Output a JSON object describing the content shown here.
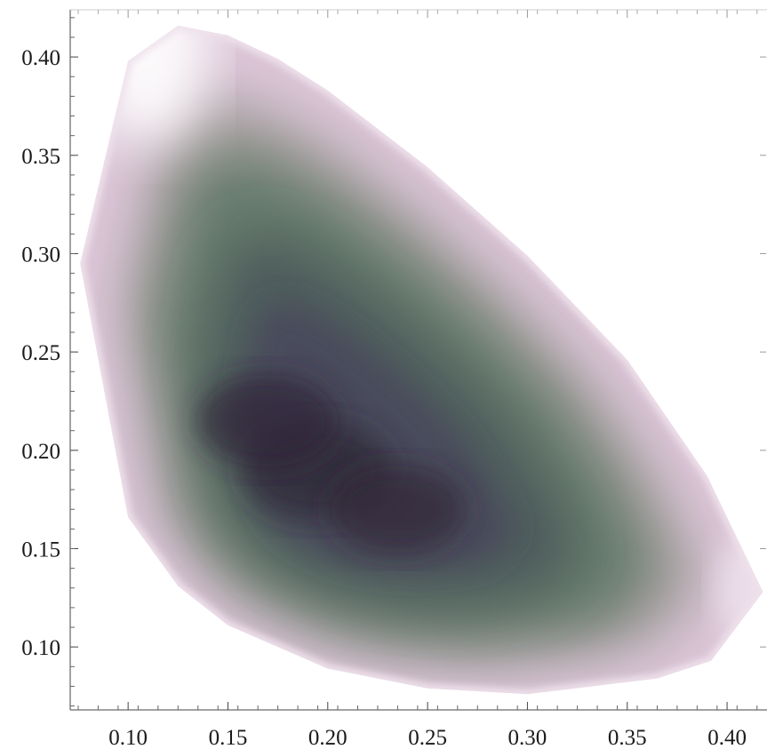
{
  "chart_data": {
    "type": "heatmap",
    "title": "",
    "xlabel": "",
    "ylabel": "",
    "xlim": [
      0.071,
      0.42
    ],
    "ylim": [
      0.068,
      0.424
    ],
    "x_ticks": [
      "0.10",
      "0.15",
      "0.20",
      "0.25",
      "0.30",
      "0.35",
      "0.40"
    ],
    "y_ticks": [
      "0.10",
      "0.15",
      "0.20",
      "0.25",
      "0.30",
      "0.35",
      "0.40"
    ],
    "grid": false,
    "legend": "none",
    "color_scale": [
      "#ffffff",
      "#dcc6d8",
      "#a9a2a3",
      "#677d6d",
      "#4e5c5c",
      "#4a4b5b",
      "#2f2636"
    ],
    "region_outline": [
      [
        0.125,
        0.416
      ],
      [
        0.15,
        0.411
      ],
      [
        0.175,
        0.399
      ],
      [
        0.2,
        0.383
      ],
      [
        0.25,
        0.344
      ],
      [
        0.3,
        0.299
      ],
      [
        0.35,
        0.246
      ],
      [
        0.39,
        0.187
      ],
      [
        0.418,
        0.128
      ],
      [
        0.392,
        0.093
      ],
      [
        0.365,
        0.084
      ],
      [
        0.3,
        0.076
      ],
      [
        0.25,
        0.079
      ],
      [
        0.2,
        0.089
      ],
      [
        0.15,
        0.111
      ],
      [
        0.125,
        0.131
      ],
      [
        0.1,
        0.166
      ],
      [
        0.076,
        0.295
      ],
      [
        0.1,
        0.398
      ]
    ],
    "density_peaks": [
      {
        "x": 0.195,
        "y": 0.19,
        "level": 1.0
      },
      {
        "x": 0.17,
        "y": 0.215,
        "level": 0.95
      },
      {
        "x": 0.235,
        "y": 0.17,
        "level": 0.9
      }
    ]
  }
}
